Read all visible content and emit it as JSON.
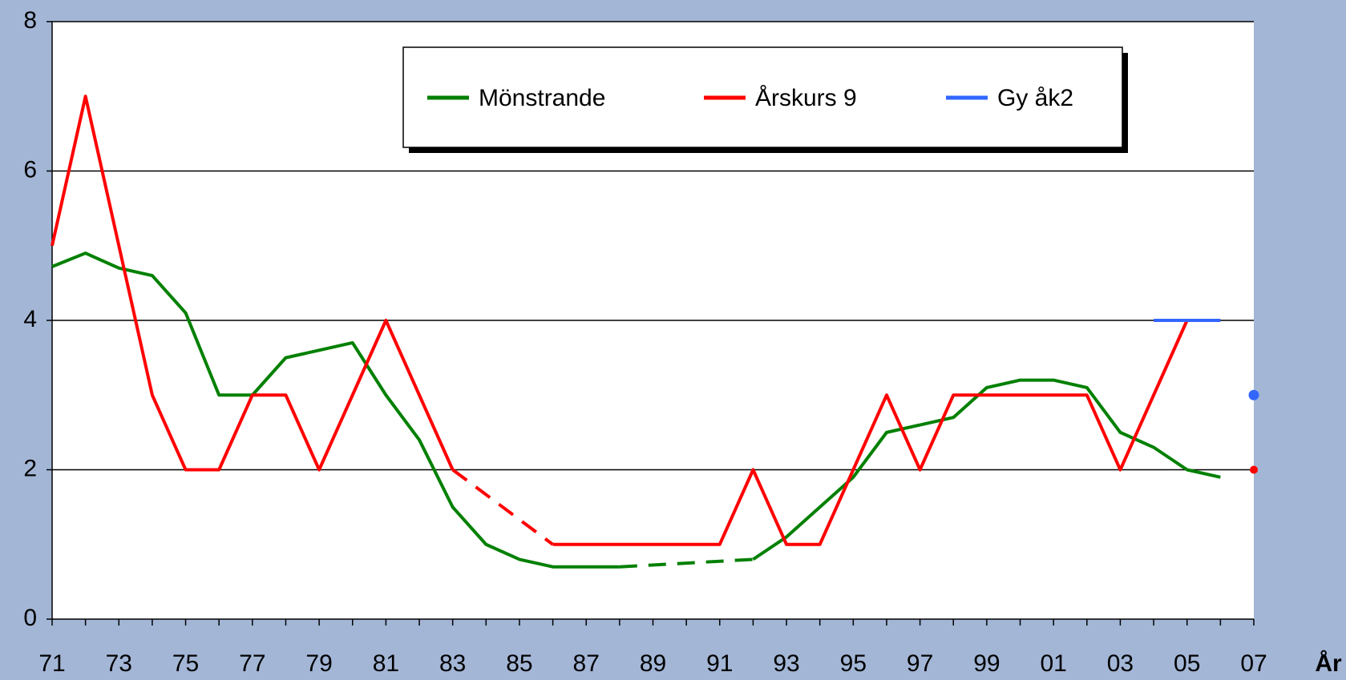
{
  "chart_data": {
    "type": "line",
    "x_label": "År",
    "categories": [
      "71",
      null,
      "73",
      null,
      "75",
      null,
      "77",
      null,
      "79",
      null,
      "81",
      null,
      "83",
      null,
      "85",
      null,
      "87",
      null,
      "89",
      null,
      "91",
      null,
      "93",
      null,
      "95",
      null,
      "97",
      null,
      "99",
      null,
      "01",
      null,
      "03",
      null,
      "05",
      null,
      "07"
    ],
    "series": [
      {
        "name": "Mönstrande",
        "color": "#008000",
        "bridge_gaps": "dashed",
        "values": [
          4.72,
          4.9,
          4.7,
          4.6,
          4.1,
          3.0,
          3.0,
          3.5,
          3.6,
          3.7,
          3.0,
          2.4,
          1.5,
          1.0,
          0.8,
          0.7,
          0.7,
          0.7,
          null,
          null,
          null,
          0.8,
          1.1,
          1.5,
          1.9,
          2.5,
          2.6,
          2.7,
          3.1,
          3.2,
          3.2,
          3.1,
          2.5,
          2.3,
          2.0,
          1.9,
          null
        ]
      },
      {
        "name": "Årskurs 9",
        "color": "#ff0000",
        "bridge_gaps": "dashed",
        "end_point_value": 2,
        "values": [
          5,
          7,
          5,
          3,
          2,
          2,
          3,
          3,
          2,
          3,
          4,
          3,
          2,
          null,
          null,
          1,
          1,
          1,
          1,
          1,
          1,
          2,
          1,
          1,
          2,
          3,
          2,
          3,
          3,
          3,
          3,
          3,
          2,
          3,
          4,
          null,
          null
        ]
      },
      {
        "name": "Gy åk2",
        "color": "#3366ff",
        "end_point_value": 3,
        "values": [
          null,
          null,
          null,
          null,
          null,
          null,
          null,
          null,
          null,
          null,
          null,
          null,
          null,
          null,
          null,
          null,
          null,
          null,
          null,
          null,
          null,
          null,
          null,
          null,
          null,
          null,
          null,
          null,
          null,
          null,
          null,
          null,
          null,
          4,
          4,
          4,
          null
        ]
      }
    ],
    "ylim": [
      0,
      8
    ],
    "yticks": [
      0,
      2,
      4,
      6,
      8
    ],
    "grid": true
  }
}
